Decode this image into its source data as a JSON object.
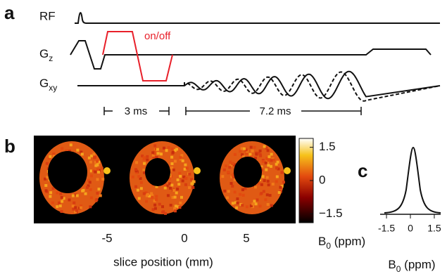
{
  "panel_a": {
    "label": "a",
    "rows": [
      {
        "name": "RF"
      },
      {
        "name": "G",
        "subscript": "z"
      },
      {
        "name": "G",
        "subscript": "xy"
      }
    ],
    "annotation": "on/off",
    "durations": [
      "3 ms",
      "7.2 ms"
    ]
  },
  "panel_b": {
    "label": "b",
    "slice_positions": [
      -5,
      0,
      5
    ],
    "xlabel": "slice position (mm)",
    "colorbar": {
      "clim": [
        -1.9,
        1.9
      ],
      "ticks": [
        1.5,
        0,
        {
          "value": -1.5,
          "label": "−1.5"
        }
      ],
      "label": {
        "text": "B",
        "subscript": "0",
        "unit": " (ppm)"
      }
    }
  },
  "panel_c": {
    "label": "c",
    "xlim": [
      -1.9,
      1.9
    ],
    "xticks": [
      -1.5,
      0,
      1.5
    ],
    "xlabel": {
      "text": "B",
      "subscript": "0",
      "unit": " (ppm)"
    }
  }
}
